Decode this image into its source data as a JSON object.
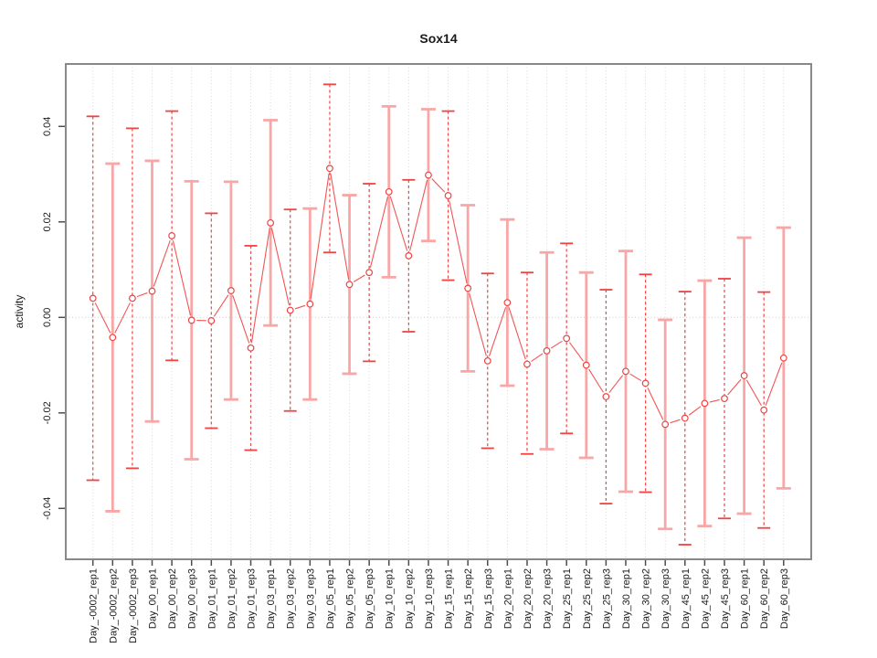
{
  "chart_data": {
    "type": "scatter",
    "title": "Sox14",
    "ylabel": "activity",
    "xlabel": "",
    "legend": "none",
    "grid": "vertical dotted gridline per category; dotted horizontal line at y=0",
    "style": "open-circle points connected by line segments, with asymmetric-length vertical error bars (alternating dashed red / solid pink)",
    "ylim": [
      -0.05,
      0.052
    ],
    "yticks": [
      0.04,
      0.02,
      0.0,
      -0.02,
      -0.04
    ],
    "ytick_labels": [
      "0.04",
      "0.02",
      "0.00",
      "-0.02",
      "-0.04"
    ],
    "categories": [
      "Day_-0002_rep1",
      "Day_-0002_rep2",
      "Day_-0002_rep3",
      "Day_00_rep1",
      "Day_00_rep2",
      "Day_00_rep3",
      "Day_01_rep1",
      "Day_01_rep2",
      "Day_01_rep3",
      "Day_03_rep1",
      "Day_03_rep2",
      "Day_03_rep3",
      "Day_05_rep1",
      "Day_05_rep2",
      "Day_05_rep3",
      "Day_10_rep1",
      "Day_10_rep2",
      "Day_10_rep3",
      "Day_15_rep1",
      "Day_15_rep2",
      "Day_15_rep3",
      "Day_20_rep1",
      "Day_20_rep2",
      "Day_20_rep3",
      "Day_25_rep1",
      "Day_25_rep2",
      "Day_25_rep3",
      "Day_30_rep1",
      "Day_30_rep2",
      "Day_30_rep3",
      "Day_45_rep1",
      "Day_45_rep2",
      "Day_45_rep3",
      "Day_60_rep1",
      "Day_60_rep2",
      "Day_60_rep3"
    ],
    "series": [
      {
        "name": "activity",
        "values": [
          0.004,
          -0.0042,
          0.004,
          0.0055,
          0.0171,
          -0.0006,
          -0.0007,
          0.0056,
          -0.0064,
          0.0198,
          0.0015,
          0.0028,
          0.0312,
          0.0069,
          0.0094,
          0.0263,
          0.0129,
          0.0298,
          0.0255,
          0.0061,
          -0.0091,
          0.0031,
          -0.0098,
          -0.007,
          -0.0044,
          -0.01,
          -0.0166,
          -0.0113,
          -0.0138,
          -0.0224,
          -0.0211,
          -0.018,
          -0.017,
          -0.0122,
          -0.0194,
          -0.0085
        ],
        "upper": [
          0.0421,
          0.0322,
          0.0396,
          0.0328,
          0.0432,
          0.0285,
          0.0218,
          0.0284,
          0.015,
          0.0413,
          0.0226,
          0.0228,
          0.0488,
          0.0256,
          0.028,
          0.0442,
          0.0288,
          0.0436,
          0.0432,
          0.0235,
          0.0092,
          0.0205,
          0.0094,
          0.0136,
          0.0155,
          0.0094,
          0.0058,
          0.0139,
          0.009,
          -0.0005,
          0.0054,
          0.0077,
          0.0081,
          0.0167,
          0.0053,
          0.0188
        ],
        "lower": [
          -0.0341,
          -0.0406,
          -0.0316,
          -0.0218,
          -0.009,
          -0.0297,
          -0.0232,
          -0.0172,
          -0.0278,
          -0.0017,
          -0.0196,
          -0.0172,
          0.0136,
          -0.0118,
          -0.0092,
          0.0084,
          -0.003,
          0.016,
          0.0078,
          -0.0113,
          -0.0274,
          -0.0143,
          -0.0286,
          -0.0276,
          -0.0243,
          -0.0294,
          -0.039,
          -0.0365,
          -0.0366,
          -0.0443,
          -0.0476,
          -0.0437,
          -0.0421,
          -0.0411,
          -0.0441,
          -0.0358
        ]
      }
    ],
    "colors": {
      "bar_red": "#ee4444",
      "bar_pink": "#f9a6a6",
      "point_stroke": "#ee4343",
      "point_fill": "#ffffff",
      "connect_line": "#f25555",
      "grid": "#d9d9d9",
      "zero_line": "#cccccc",
      "box": "#888888",
      "tick": "#4d4d4d",
      "label_text": "#1a1a1a",
      "title_text": "#000000"
    }
  }
}
